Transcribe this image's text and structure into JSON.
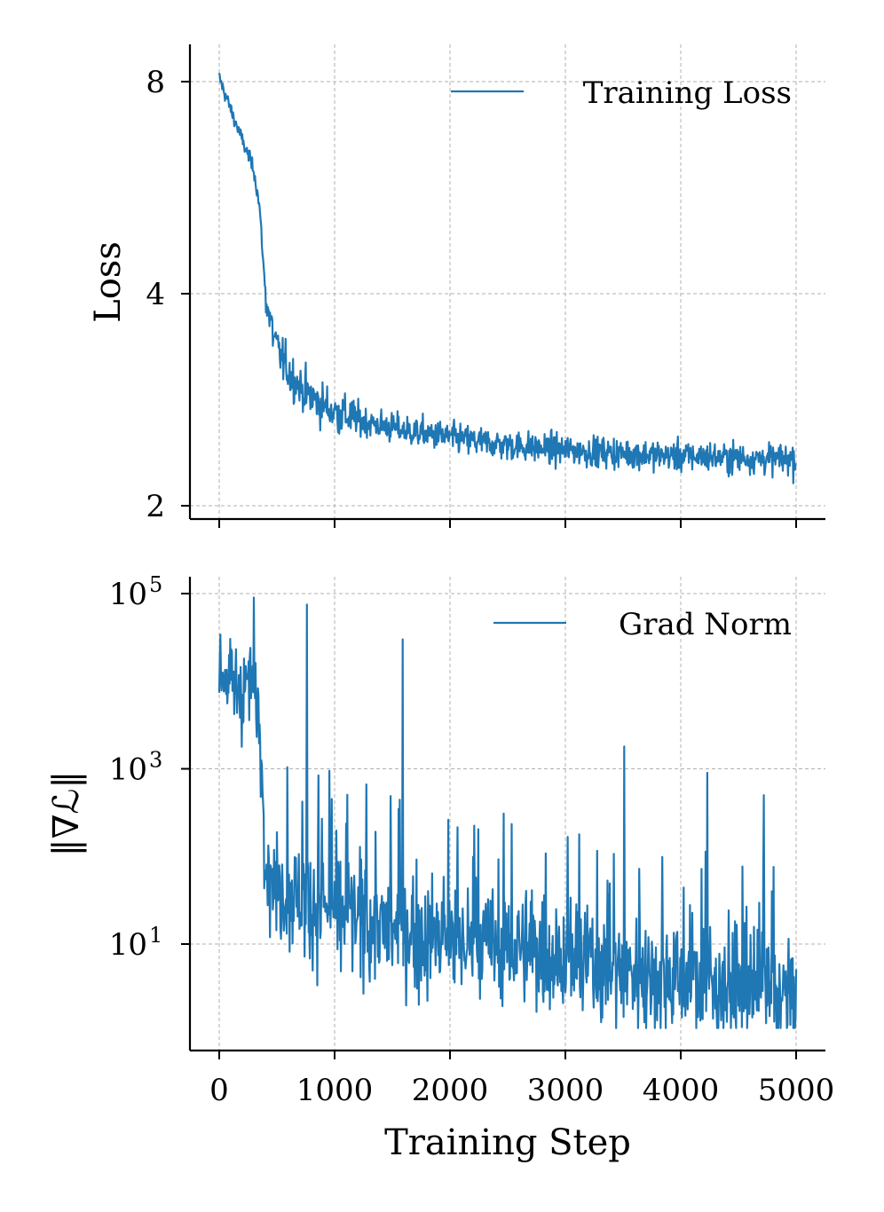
{
  "chart_data": [
    {
      "type": "line",
      "panel": "top",
      "ylabel": "Loss",
      "xlabel": "",
      "yscale": "log",
      "ylim": [
        1.85,
        9.4
      ],
      "xlim": [
        -250,
        5250
      ],
      "grid": true,
      "legend_placement": "top-right",
      "color": "#1f77b4",
      "yticks": [
        {
          "value": 2,
          "label": "2"
        },
        {
          "value": 4,
          "label": "4"
        },
        {
          "value": 8,
          "label": "8"
        }
      ],
      "series": [
        {
          "name": "Training Loss",
          "x": [
            0,
            100,
            200,
            300,
            350,
            400,
            450,
            500,
            600,
            700,
            800,
            900,
            1000,
            1200,
            1400,
            1600,
            1800,
            2000,
            2200,
            2400,
            2600,
            2800,
            3000,
            3200,
            3400,
            3600,
            3800,
            4000,
            4200,
            4400,
            4600,
            4800,
            5000
          ],
          "y": [
            8.1,
            7.3,
            6.6,
            6.0,
            5.3,
            4.0,
            3.6,
            3.35,
            3.1,
            2.95,
            2.85,
            2.78,
            2.72,
            2.65,
            2.6,
            2.56,
            2.53,
            2.5,
            2.47,
            2.45,
            2.43,
            2.41,
            2.4,
            2.39,
            2.38,
            2.37,
            2.36,
            2.35,
            2.35,
            2.34,
            2.34,
            2.33,
            2.33
          ]
        }
      ]
    },
    {
      "type": "line",
      "panel": "bottom",
      "ylabel": "‖∇ℒ‖",
      "xlabel": "Training Step",
      "yscale": "log",
      "ylim": [
        0.65,
        160000
      ],
      "xlim": [
        -250,
        5250
      ],
      "grid": true,
      "legend_placement": "top-right",
      "color": "#1f77b4",
      "yticks": [
        {
          "value": 10,
          "base": "10",
          "exp": "1"
        },
        {
          "value": 1000,
          "base": "10",
          "exp": "3"
        },
        {
          "value": 100000,
          "base": "10",
          "exp": "5"
        }
      ],
      "xticks": [
        0,
        1000,
        2000,
        3000,
        4000,
        5000
      ],
      "series": [
        {
          "name": "Grad Norm",
          "x": [
            0,
            100,
            200,
            300,
            350,
            400,
            450,
            500,
            600,
            700,
            800,
            900,
            1000,
            1200,
            1400,
            1600,
            1800,
            2000,
            2200,
            2400,
            2600,
            2800,
            3000,
            3200,
            3400,
            3600,
            3800,
            4000,
            4200,
            4400,
            4600,
            4800,
            5000
          ],
          "y": [
            12000,
            10000,
            9000,
            8000,
            3000,
            150,
            60,
            45,
            40,
            35,
            30,
            27,
            25,
            20,
            16,
            14,
            12,
            11,
            10,
            9.5,
            9,
            8.5,
            7,
            6,
            5.5,
            5,
            4.6,
            4.2,
            3.8,
            3.4,
            3.0,
            2.6,
            2.2
          ]
        }
      ],
      "spikes": [
        {
          "x": 300,
          "y": 90000
        },
        {
          "x": 760,
          "y": 75000
        },
        {
          "x": 1590,
          "y": 30000
        },
        {
          "x": 3510,
          "y": 1800
        },
        {
          "x": 4230,
          "y": 900
        },
        {
          "x": 4720,
          "y": 500
        }
      ]
    }
  ]
}
